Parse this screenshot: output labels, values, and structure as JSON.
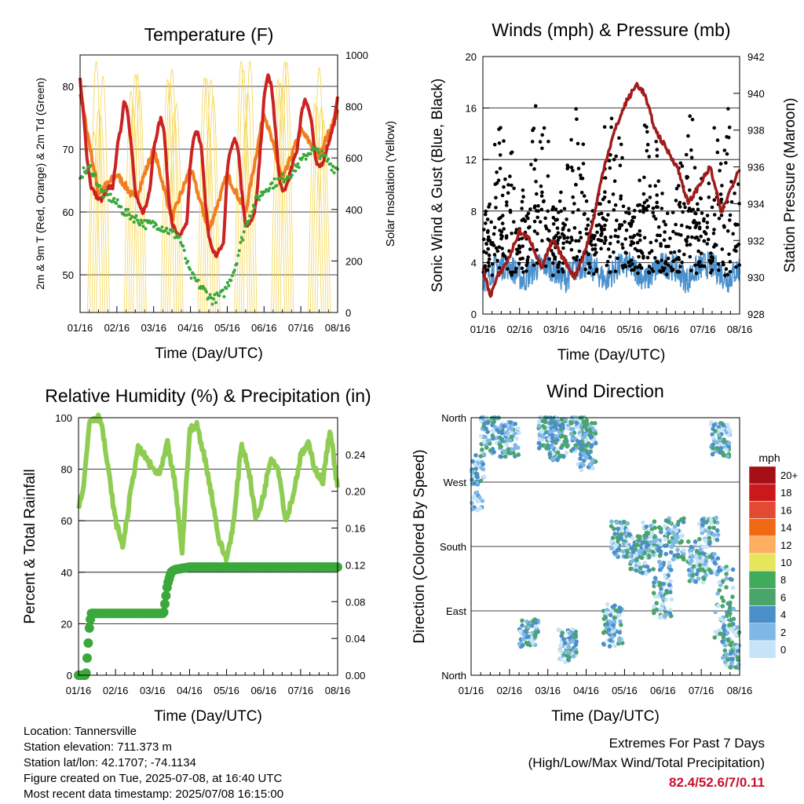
{
  "chart_data": [
    {
      "type": "line",
      "title": "Temperature (F)",
      "xlabel": "Time (Day/UTC)",
      "ylabel": "2m & 9m T (Red, Orange) & 2m Td (Green)",
      "y2label": "Solar Insolation (Yellow)",
      "x_ticks": [
        "01/16",
        "02/16",
        "03/16",
        "04/16",
        "05/16",
        "06/16",
        "07/16",
        "08/16"
      ],
      "xlim": [
        0,
        7
      ],
      "ylim": [
        44,
        85
      ],
      "y_ticks": [
        50,
        60,
        70,
        80
      ],
      "y2lim": [
        0,
        1000
      ],
      "y2_ticks": [
        0,
        200,
        400,
        600,
        800,
        1000
      ],
      "grid": true,
      "series": [
        {
          "name": "2m T",
          "color": "#cc2222",
          "x": [
            0,
            0.1,
            0.2,
            0.3,
            0.4,
            0.5,
            0.6,
            0.7,
            0.8,
            0.9,
            1.0,
            1.1,
            1.2,
            1.3,
            1.4,
            1.5,
            1.6,
            1.7,
            1.8,
            1.9,
            2.0,
            2.1,
            2.2,
            2.3,
            2.4,
            2.5,
            2.6,
            2.7,
            2.8,
            2.9,
            3.0,
            3.1,
            3.2,
            3.3,
            3.4,
            3.5,
            3.6,
            3.7,
            3.8,
            3.9,
            4.0,
            4.1,
            4.2,
            4.3,
            4.4,
            4.5,
            4.6,
            4.7,
            4.8,
            4.9,
            5.0,
            5.1,
            5.2,
            5.3,
            5.4,
            5.5,
            5.6,
            5.7,
            5.8,
            5.9,
            6.0,
            6.1,
            6.2,
            6.3,
            6.4,
            6.5,
            6.6,
            6.7,
            6.8,
            6.9,
            7.0
          ],
          "values": [
            81,
            75,
            68,
            64,
            63,
            62,
            62,
            63,
            64,
            64,
            70,
            73,
            78,
            76,
            70,
            63,
            61,
            60,
            61,
            64,
            70,
            73,
            75,
            72,
            63,
            58,
            57,
            56,
            57,
            58,
            68,
            72,
            73,
            70,
            62,
            56,
            54,
            53,
            54,
            55,
            67,
            70,
            72,
            70,
            63,
            58,
            58,
            59,
            62,
            70,
            78,
            82,
            80,
            74,
            66,
            63,
            64,
            66,
            68,
            70,
            75,
            78,
            77,
            74,
            68,
            67,
            68,
            70,
            72,
            74,
            78
          ]
        },
        {
          "name": "9m T",
          "color": "#f07f1f",
          "x": [
            0,
            0.5,
            1.0,
            1.5,
            2.0,
            2.5,
            3.0,
            3.5,
            4.0,
            4.5,
            5.0,
            5.5,
            6.0,
            6.5,
            7.0
          ],
          "values": [
            79,
            63,
            66,
            62,
            70,
            59,
            67,
            57,
            66,
            60,
            76,
            65,
            73,
            69,
            76
          ]
        },
        {
          "name": "2m Td",
          "color": "#3aa83a",
          "x": [
            0,
            0.3,
            0.6,
            0.9,
            1.2,
            1.5,
            1.8,
            2.1,
            2.4,
            2.7,
            3.0,
            3.3,
            3.6,
            3.9,
            4.2,
            4.5,
            4.8,
            5.1,
            5.4,
            5.7,
            6.0,
            6.3,
            6.6,
            6.9,
            7.0
          ],
          "values": [
            66,
            67,
            63,
            62,
            60,
            59,
            58,
            58,
            57,
            56,
            50,
            48,
            46,
            47,
            51,
            58,
            62,
            64,
            65,
            66,
            68,
            70,
            69,
            67,
            67
          ]
        }
      ]
    },
    {
      "type": "scatter",
      "title": "Winds (mph) & Pressure (mb)",
      "xlabel": "Time (Day/UTC)",
      "ylabel": "Sonic Wind & Gust (Blue, Black)",
      "y2label": "Station Pressure (Maroon)",
      "x_ticks": [
        "01/16",
        "02/16",
        "03/16",
        "04/16",
        "05/16",
        "06/16",
        "07/16",
        "08/16"
      ],
      "xlim": [
        0,
        7
      ],
      "ylim": [
        0,
        20
      ],
      "y_ticks": [
        0,
        4,
        8,
        12,
        16,
        20
      ],
      "y2lim": [
        928,
        942
      ],
      "y2_ticks": [
        928,
        930,
        932,
        934,
        936,
        938,
        940,
        942
      ],
      "grid": true,
      "series": [
        {
          "name": "Pressure",
          "color": "#a01c1c",
          "x": [
            0,
            0.2,
            0.4,
            0.7,
            1.0,
            1.3,
            1.6,
            1.9,
            2.2,
            2.5,
            2.8,
            3.0,
            3.3,
            3.6,
            3.9,
            4.2,
            4.4,
            4.7,
            5.0,
            5.3,
            5.6,
            5.9,
            6.2,
            6.5,
            6.8,
            7.0
          ],
          "values": [
            930.5,
            929,
            930,
            931,
            932.5,
            932,
            930.5,
            932,
            931,
            930,
            931.5,
            933,
            936,
            938,
            939.5,
            940.5,
            940,
            938,
            937,
            936,
            934,
            935,
            936,
            933.5,
            935,
            936
          ]
        }
      ]
    },
    {
      "type": "line",
      "title": "Relative Humidity (%) & Precipitation (in)",
      "xlabel": "Time (Day/UTC)",
      "ylabel": "Percent & Total Rainfall",
      "x_ticks": [
        "01/16",
        "02/16",
        "03/16",
        "04/16",
        "05/16",
        "06/16",
        "07/16",
        "08/16"
      ],
      "xlim": [
        0,
        7
      ],
      "ylim": [
        0,
        100
      ],
      "y_ticks": [
        0,
        20,
        40,
        60,
        80,
        100
      ],
      "y2lim": [
        0,
        0.28
      ],
      "y2_ticks": [
        "0.00",
        "0.04",
        "0.08",
        "0.12",
        "0.16",
        "0.20",
        "0.24"
      ],
      "grid": true,
      "series": [
        {
          "name": "Relative Humidity",
          "color": "#8fcc52",
          "x": [
            0,
            0.15,
            0.3,
            0.45,
            0.6,
            0.8,
            1.0,
            1.2,
            1.4,
            1.6,
            1.8,
            2.0,
            2.2,
            2.4,
            2.6,
            2.8,
            3.0,
            3.2,
            3.4,
            3.6,
            3.8,
            4.0,
            4.2,
            4.4,
            4.6,
            4.8,
            5.0,
            5.2,
            5.4,
            5.6,
            5.8,
            6.0,
            6.2,
            6.4,
            6.6,
            6.8,
            7.0
          ],
          "values": [
            65,
            75,
            99,
            100,
            100,
            80,
            60,
            50,
            70,
            88,
            85,
            80,
            78,
            90,
            75,
            48,
            95,
            97,
            85,
            70,
            52,
            45,
            60,
            90,
            80,
            60,
            70,
            85,
            80,
            60,
            70,
            85,
            90,
            80,
            75,
            96,
            72
          ]
        },
        {
          "name": "Total Precipitation",
          "color": "#3aa83a",
          "x": [
            0,
            0.2,
            0.3,
            0.35,
            0.4,
            0.6,
            1.0,
            1.5,
            2.0,
            2.3,
            2.4,
            2.5,
            2.6,
            3.0,
            4.0,
            5.0,
            6.0,
            7.0
          ],
          "values": [
            0,
            0,
            20,
            24,
            24,
            24,
            24,
            24,
            24,
            24,
            35,
            40,
            41,
            42,
            42,
            42,
            42,
            42
          ]
        }
      ]
    },
    {
      "type": "scatter",
      "title": "Wind Direction",
      "xlabel": "Time (Day/UTC)",
      "ylabel": "Direction (Colored By Speed)",
      "x_ticks": [
        "01/16",
        "02/16",
        "03/16",
        "04/16",
        "05/16",
        "06/16",
        "07/16",
        "08/16"
      ],
      "xlim": [
        0,
        7
      ],
      "ylim": [
        0,
        360
      ],
      "y_tick_labels": [
        "North",
        "East",
        "South",
        "West",
        "North"
      ],
      "grid": true,
      "legend": {
        "title": "mph",
        "labels": [
          "20+",
          "18",
          "16",
          "14",
          "12",
          "10",
          "8",
          "6",
          "4",
          "2",
          "0"
        ],
        "colors": [
          "#a50f15",
          "#cb181d",
          "#e34a33",
          "#f16913",
          "#fdae61",
          "#e6e65c",
          "#41ab5d",
          "#4aa56a",
          "#4a8fc8",
          "#7fb8e6",
          "#c6e3f7"
        ]
      }
    }
  ],
  "footer": {
    "location": "Location: Tannersville",
    "elevation": "Station elevation: 711.373 m",
    "latlon": "Station lat/lon: 42.1707; -74.1134",
    "created": "Figure created on Tue, 2025-07-08, at 16:40 UTC",
    "recent": "Most recent data timestamp: 2025/07/08 16:15:00"
  },
  "extremes": {
    "title": "Extremes For Past 7 Days",
    "subtitle": "(High/Low/Max Wind/Total Precipitation)",
    "values": "82.4/52.6/7/0.11"
  }
}
